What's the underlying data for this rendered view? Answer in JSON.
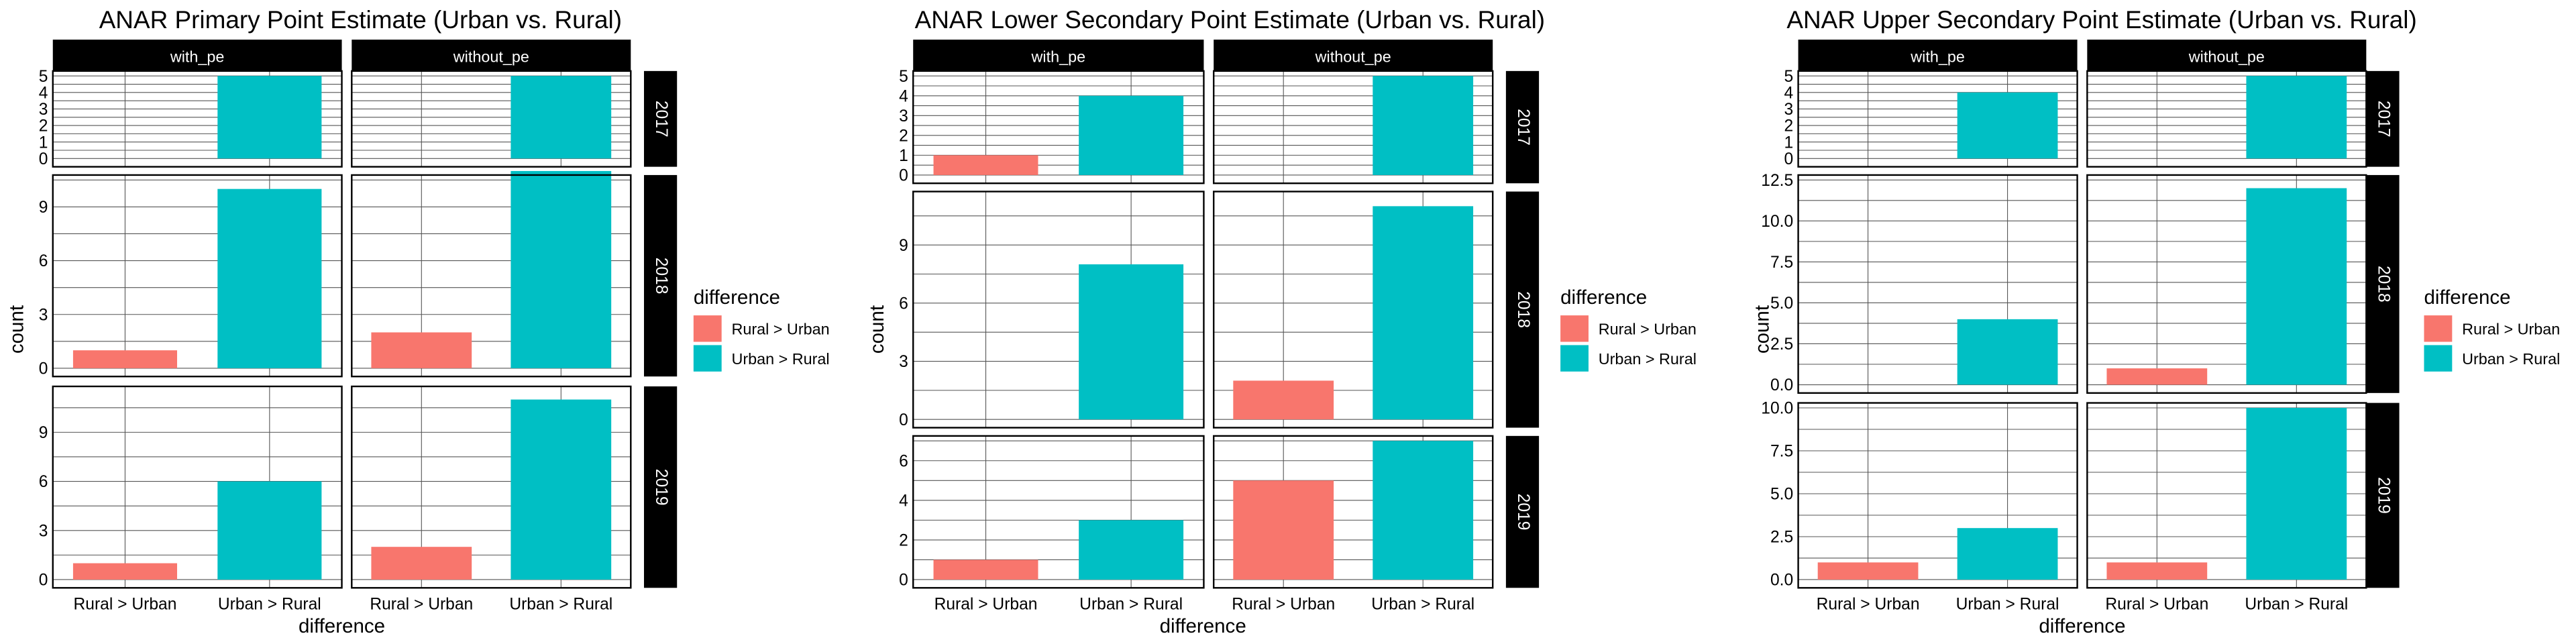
{
  "legend": {
    "title": "difference",
    "items": [
      {
        "label": "Rural >  Urban",
        "color": "#F8766D"
      },
      {
        "label": "Urban > Rural",
        "color": "#00BFC4"
      }
    ]
  },
  "chart_data": [
    {
      "type": "bar",
      "title": "ANAR Primary Point Estimate (Urban vs. Rural)",
      "xlabel": "difference",
      "ylabel": "count",
      "categories": [
        "Rural >  Urban",
        "Urban > Rural"
      ],
      "columns": [
        "with_pe",
        "without_pe"
      ],
      "rows": [
        {
          "year": "2017",
          "ylim": [
            0,
            5
          ],
          "ticks": [
            "0",
            "1",
            "2",
            "3",
            "4",
            "5"
          ],
          "tickvals": [
            0,
            1,
            2,
            3,
            4,
            5
          ],
          "values": {
            "with_pe": [
              null,
              5
            ],
            "without_pe": [
              null,
              5
            ]
          }
        },
        {
          "year": "2018",
          "ylim": [
            0,
            10.5
          ],
          "ticks": [
            "0",
            "3",
            "6",
            "9"
          ],
          "tickvals": [
            0,
            3,
            6,
            9
          ],
          "values": {
            "with_pe": [
              1,
              10
            ],
            "without_pe": [
              2,
              11
            ]
          }
        },
        {
          "year": "2019",
          "ylim": [
            0,
            11.5
          ],
          "ticks": [
            "0",
            "3",
            "6",
            "9"
          ],
          "tickvals": [
            0,
            3,
            6,
            9
          ],
          "values": {
            "with_pe": [
              1,
              6
            ],
            "without_pe": [
              2,
              11
            ]
          }
        }
      ]
    },
    {
      "type": "bar",
      "title": "ANAR Lower Secondary Point Estimate (Urban vs. Rural)",
      "xlabel": "difference",
      "ylabel": "count",
      "categories": [
        "Rural >  Urban",
        "Urban > Rural"
      ],
      "columns": [
        "with_pe",
        "without_pe"
      ],
      "rows": [
        {
          "year": "2017",
          "ylim": [
            0,
            5
          ],
          "ticks": [
            "0",
            "1",
            "2",
            "3",
            "4",
            "5"
          ],
          "tickvals": [
            0,
            1,
            2,
            3,
            4,
            5
          ],
          "values": {
            "with_pe": [
              1,
              4
            ],
            "without_pe": [
              null,
              5
            ]
          }
        },
        {
          "year": "2018",
          "ylim": [
            0,
            11.5
          ],
          "ticks": [
            "0",
            "3",
            "6",
            "9"
          ],
          "tickvals": [
            0,
            3,
            6,
            9
          ],
          "values": {
            "with_pe": [
              null,
              8
            ],
            "without_pe": [
              2,
              11
            ]
          }
        },
        {
          "year": "2019",
          "ylim": [
            0,
            7
          ],
          "ticks": [
            "0",
            "2",
            "4",
            "6"
          ],
          "tickvals": [
            0,
            2,
            4,
            6
          ],
          "values": {
            "with_pe": [
              1,
              3
            ],
            "without_pe": [
              5,
              7
            ]
          }
        }
      ]
    },
    {
      "type": "bar",
      "title": "ANAR Upper Secondary Point Estimate (Urban vs. Rural)",
      "xlabel": "difference",
      "ylabel": "count",
      "categories": [
        "Rural >  Urban",
        "Urban > Rural"
      ],
      "columns": [
        "with_pe",
        "without_pe"
      ],
      "rows": [
        {
          "year": "2017",
          "ylim": [
            0,
            5
          ],
          "ticks": [
            "0",
            "1",
            "2",
            "3",
            "4",
            "5"
          ],
          "tickvals": [
            0,
            1,
            2,
            3,
            4,
            5
          ],
          "values": {
            "with_pe": [
              null,
              4
            ],
            "without_pe": [
              null,
              5
            ]
          }
        },
        {
          "year": "2018",
          "ylim": [
            0,
            12.5
          ],
          "ticks": [
            "0.0",
            "2.5",
            "5.0",
            "7.5",
            "10.0",
            "12.5"
          ],
          "tickvals": [
            0,
            2.5,
            5,
            7.5,
            10,
            12.5
          ],
          "values": {
            "with_pe": [
              null,
              4
            ],
            "without_pe": [
              1,
              12
            ]
          }
        },
        {
          "year": "2019",
          "ylim": [
            0,
            10
          ],
          "ticks": [
            "0.0",
            "2.5",
            "5.0",
            "7.5",
            "10.0"
          ],
          "tickvals": [
            0,
            2.5,
            5,
            7.5,
            10
          ],
          "values": {
            "with_pe": [
              1,
              3
            ],
            "without_pe": [
              1,
              10
            ]
          }
        }
      ]
    }
  ]
}
